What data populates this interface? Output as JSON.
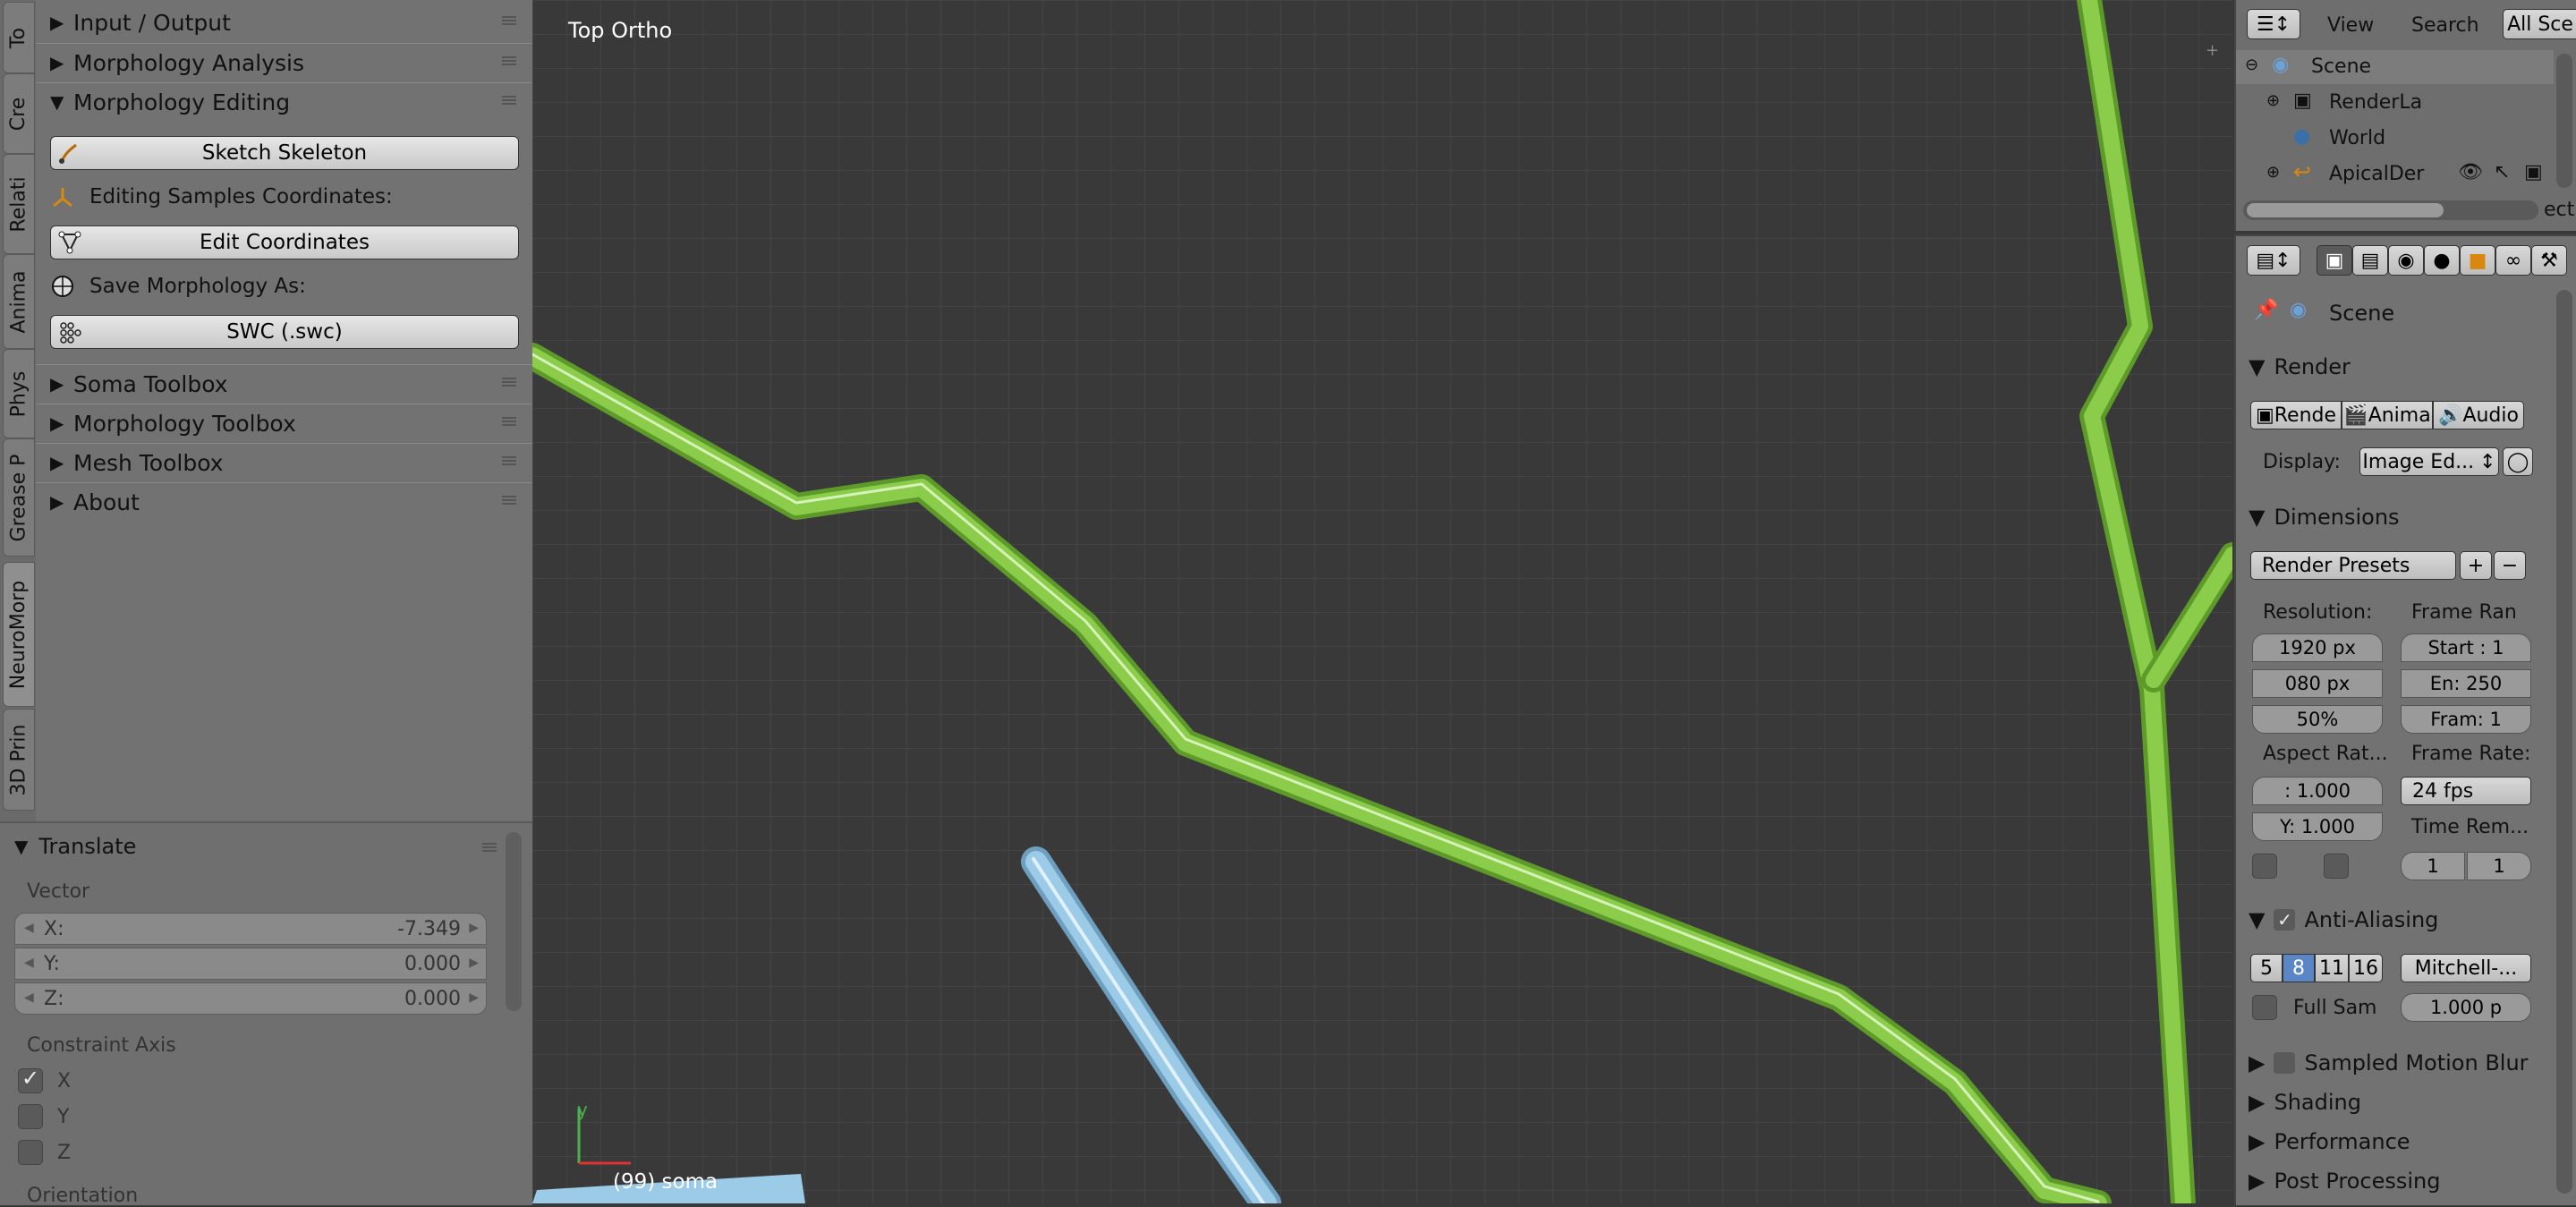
{
  "tool_tabs": [
    "To",
    "Cre",
    "Relati",
    "Anima",
    "Phys",
    "Grease P",
    "NeuroMorp",
    "3D Prin"
  ],
  "toolshelf": {
    "panels_top": [
      {
        "title": "Input / Output",
        "expanded": false
      },
      {
        "title": "Morphology Analysis",
        "expanded": false
      },
      {
        "title": "Morphology Editing",
        "expanded": true
      }
    ],
    "editing": {
      "sketch_button": "Sketch Skeleton",
      "coords_label": "Editing Samples Coordinates:",
      "edit_coords_button": "Edit Coordinates",
      "save_label": "Save Morphology As:",
      "swc_button": "SWC (.swc)"
    },
    "panels_bottom": [
      {
        "title": "Soma Toolbox",
        "expanded": false
      },
      {
        "title": "Morphology Toolbox",
        "expanded": false
      },
      {
        "title": "Mesh Toolbox",
        "expanded": false
      },
      {
        "title": "About",
        "expanded": false
      }
    ]
  },
  "operator_panel": {
    "title": "Translate",
    "vector_label": "Vector",
    "x_label": "X:",
    "x_value": "-7.349",
    "y_label": "Y:",
    "y_value": "0.000",
    "z_label": "Z:",
    "z_value": "0.000",
    "constraint_label": "Constraint Axis",
    "axes": [
      {
        "label": "X",
        "checked": true
      },
      {
        "label": "Y",
        "checked": false
      },
      {
        "label": "Z",
        "checked": false
      }
    ],
    "orientation_label": "Orientation"
  },
  "viewport": {
    "view_name": "Top Ortho",
    "status": "(99) soma",
    "axis_y": "y",
    "colors": {
      "green": "#8bcc4a",
      "blue": "#9ccbe8",
      "grid": "#444444"
    }
  },
  "outliner": {
    "view_menu": "View",
    "search_menu": "Search",
    "scenes_dropdown": "All Sce",
    "items": [
      "Scene",
      "RenderLa",
      "World",
      "ApicalDer"
    ],
    "cut_text": "ecti"
  },
  "properties": {
    "scene_name": "Scene",
    "render_header": "Render",
    "render_buttons": [
      "Rende",
      "Anima",
      "Audio"
    ],
    "display_label": "Display:",
    "display_value": "Image Ed...",
    "dimensions_header": "Dimensions",
    "presets": "Render Presets",
    "resolution_label": "Resolution:",
    "res_x": "1920 px",
    "res_y": "080 px",
    "res_pct": "50%",
    "frame_range_label": "Frame Ran",
    "start": "Start : 1",
    "end": "En: 250",
    "frame": "Fram: 1",
    "aspect_label": "Aspect Rat...",
    "aspect_x": ":  1.000",
    "aspect_y": "Y: 1.000",
    "frame_rate_label": "Frame Rate:",
    "fps": "24 fps",
    "time_remap_label": "Time Rem...",
    "remap_old": "1",
    "remap_new": "1",
    "aa_header": "Anti-Aliasing",
    "aa_samples": [
      "5",
      "8",
      "11",
      "16"
    ],
    "aa_selected": "8",
    "aa_filter": "Mitchell-...",
    "full_sample": "Full Sam",
    "filter_size": "1.000 p",
    "motion_blur": "Sampled Motion Blur",
    "shading": "Shading",
    "performance": "Performance",
    "post_processing": "Post Processing"
  }
}
